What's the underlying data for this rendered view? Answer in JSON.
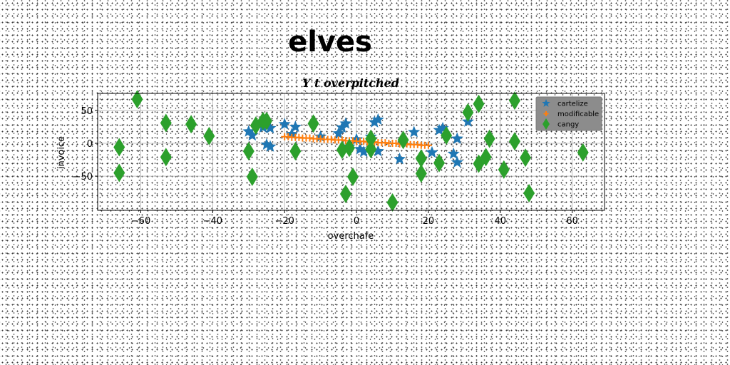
{
  "chart_data": {
    "type": "scatter",
    "suptitle": "elves",
    "title": "Y t overpitched",
    "xlabel": "overchafe",
    "ylabel": "invoice",
    "xlim": [
      -72,
      69
    ],
    "ylim": [
      -102,
      76
    ],
    "xticks": [
      -60,
      -40,
      -20,
      0,
      20,
      40,
      60
    ],
    "xtick_labels": [
      "−60",
      "−40",
      "−20",
      "0",
      "20",
      "40",
      "60"
    ],
    "yticks": [
      -50,
      0,
      50
    ],
    "ytick_labels": [
      "−50",
      "0",
      "50"
    ],
    "grid": true,
    "legend_position": "upper right",
    "series": [
      {
        "name": "cartelize",
        "marker": "star",
        "color": "#1f77b4",
        "points": [
          [
            -30,
            18
          ],
          [
            -29,
            12
          ],
          [
            -26,
            24
          ],
          [
            -25,
            -2
          ],
          [
            -24,
            -5
          ],
          [
            -24,
            23
          ],
          [
            -20,
            29
          ],
          [
            -18,
            14
          ],
          [
            -17,
            25
          ],
          [
            -10,
            10
          ],
          [
            -5,
            15
          ],
          [
            -4,
            24
          ],
          [
            -3,
            30
          ],
          [
            -2,
            -5
          ],
          [
            0,
            6
          ],
          [
            1,
            -9
          ],
          [
            2,
            -13
          ],
          [
            4,
            10
          ],
          [
            5,
            32
          ],
          [
            6,
            36
          ],
          [
            6,
            -12
          ],
          [
            12,
            -24
          ],
          [
            16,
            17
          ],
          [
            21,
            -14
          ],
          [
            23,
            20
          ],
          [
            24,
            23
          ],
          [
            27,
            -16
          ],
          [
            28,
            7
          ],
          [
            28,
            -29
          ],
          [
            31,
            33
          ]
        ]
      },
      {
        "name": "modificable",
        "marker": "plus",
        "color": "#ff7f0e",
        "points": [
          [
            -20,
            10
          ],
          [
            -19,
            10
          ],
          [
            -18,
            9
          ],
          [
            -17,
            9
          ],
          [
            -16,
            9
          ],
          [
            -15,
            8
          ],
          [
            -14,
            8
          ],
          [
            -13,
            8
          ],
          [
            -12,
            7
          ],
          [
            -11,
            7
          ],
          [
            -10,
            7
          ],
          [
            -9,
            6
          ],
          [
            -8,
            6
          ],
          [
            -7,
            6
          ],
          [
            -6,
            5
          ],
          [
            -5,
            5
          ],
          [
            -4,
            5
          ],
          [
            -3,
            4
          ],
          [
            -2,
            4
          ],
          [
            -1,
            4
          ],
          [
            0,
            3
          ],
          [
            1,
            3
          ],
          [
            2,
            3
          ],
          [
            3,
            2
          ],
          [
            4,
            2
          ],
          [
            5,
            2
          ],
          [
            6,
            1
          ],
          [
            7,
            1
          ],
          [
            8,
            1
          ],
          [
            9,
            0
          ],
          [
            10,
            0
          ],
          [
            11,
            0
          ],
          [
            12,
            -1
          ],
          [
            13,
            -1
          ],
          [
            14,
            -1
          ],
          [
            15,
            -2
          ],
          [
            16,
            -2
          ],
          [
            17,
            -2
          ],
          [
            18,
            -3
          ],
          [
            19,
            -3
          ],
          [
            20,
            -3
          ]
        ]
      },
      {
        "name": "cangy",
        "marker": "thin_diamond",
        "color": "#2ca02c",
        "points": [
          [
            -66,
            -6
          ],
          [
            -66,
            -45
          ],
          [
            -61,
            67
          ],
          [
            -53,
            31
          ],
          [
            -53,
            -21
          ],
          [
            -46,
            29
          ],
          [
            -41,
            11
          ],
          [
            -30,
            -12
          ],
          [
            -29,
            -51
          ],
          [
            -28,
            27
          ],
          [
            -26,
            34
          ],
          [
            -25,
            34
          ],
          [
            -17,
            -12
          ],
          [
            -12,
            30
          ],
          [
            -4,
            -10
          ],
          [
            -3,
            -77
          ],
          [
            -2,
            -7
          ],
          [
            -1,
            -51
          ],
          [
            4,
            7
          ],
          [
            4,
            -9
          ],
          [
            10,
            -90
          ],
          [
            13,
            5
          ],
          [
            18,
            -23
          ],
          [
            18,
            -46
          ],
          [
            23,
            -30
          ],
          [
            25,
            12
          ],
          [
            31,
            47
          ],
          [
            34,
            -31
          ],
          [
            34,
            60
          ],
          [
            36,
            -21
          ],
          [
            37,
            7
          ],
          [
            41,
            -40
          ],
          [
            44,
            3
          ],
          [
            44,
            65
          ],
          [
            47,
            -22
          ],
          [
            48,
            -76
          ],
          [
            63,
            -14
          ]
        ]
      }
    ]
  }
}
